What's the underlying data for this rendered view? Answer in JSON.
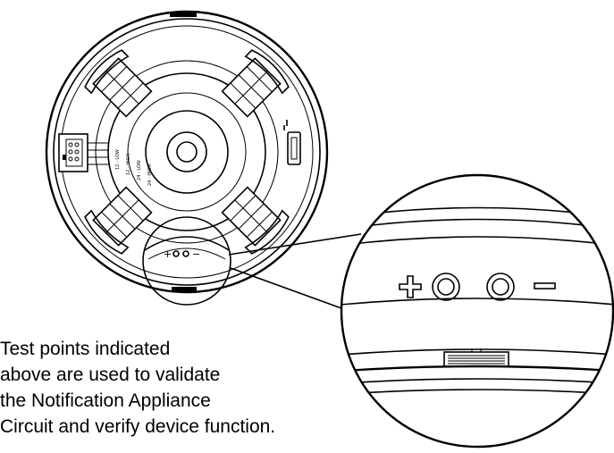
{
  "device": {
    "polarity_plus": "+",
    "polarity_minus": "−",
    "voltage_labels": [
      "12 - LOW",
      "12 - HIGH",
      "24 - LOW",
      "24 - HIGH"
    ]
  },
  "caption": {
    "lines": [
      "Test points indicated",
      "above are used to validate",
      "the Notification Appliance",
      "Circuit and verify device function."
    ]
  }
}
